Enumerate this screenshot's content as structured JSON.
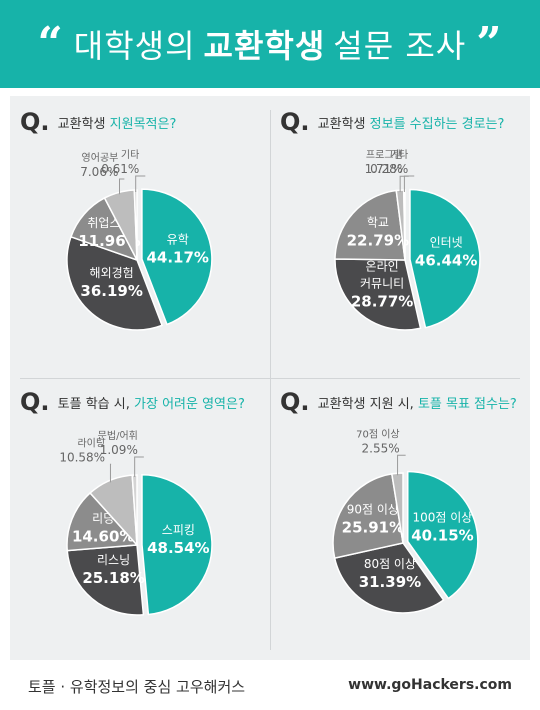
{
  "header": {
    "open_quote": "“",
    "title_pre": "대학생의",
    "title_bold": "교환학생",
    "title_post": "설문 조사",
    "close_quote": "”"
  },
  "colors": {
    "teal": "#17b3a9",
    "dark": "#4a4a4c",
    "mid": "#8c8c8c",
    "light": "#bdbdbd",
    "lighter": "#d4d4d4"
  },
  "chart_data": [
    {
      "type": "pie",
      "q_mark": "Q.",
      "title_pre": "교환학생",
      "title_accent": "지원목적은?",
      "title_post": "",
      "slices": [
        {
          "label": "유학",
          "value": 44.17,
          "value_text": "44.17%",
          "color": "#17b3a9",
          "label_position": "inside"
        },
        {
          "label": "해외경험",
          "value": 36.19,
          "value_text": "36.19%",
          "color": "#4a4a4c",
          "label_position": "inside"
        },
        {
          "label": "취업스펙",
          "value": 11.96,
          "value_text": "11.96%",
          "color": "#8c8c8c",
          "label_position": "inside"
        },
        {
          "label": "영어공부",
          "value": 7.06,
          "value_text": "7.06%",
          "color": "#bdbdbd",
          "label_position": "outside"
        },
        {
          "label": "기타",
          "value": 0.61,
          "value_text": "0.61%",
          "color": "#d4d4d4",
          "label_position": "outside"
        }
      ]
    },
    {
      "type": "pie",
      "q_mark": "Q.",
      "title_pre": "교환학생",
      "title_accent": "정보를 수집하는 경로는?",
      "title_post": "",
      "slices": [
        {
          "label": "인터넷",
          "value": 46.44,
          "value_text": "46.44%",
          "color": "#17b3a9",
          "label_position": "inside"
        },
        {
          "label": "온라인\n커뮤니티",
          "value": 28.77,
          "value_text": "28.77%",
          "color": "#4a4a4c",
          "label_position": "inside"
        },
        {
          "label": "학교",
          "value": 22.79,
          "value_text": "22.79%",
          "color": "#8c8c8c",
          "label_position": "inside"
        },
        {
          "label": "프로그램",
          "value": 1.71,
          "value_text": "1.71%",
          "color": "#bdbdbd",
          "label_position": "outside"
        },
        {
          "label": "기타",
          "value": 0.28,
          "value_text": "0.28%",
          "color": "#d4d4d4",
          "label_position": "outside"
        }
      ]
    },
    {
      "type": "pie",
      "q_mark": "Q.",
      "title_pre": "토플 학습 시,",
      "title_accent": "가장 어려운 영역은?",
      "title_post": "",
      "slices": [
        {
          "label": "스피킹",
          "value": 48.54,
          "value_text": "48.54%",
          "color": "#17b3a9",
          "label_position": "inside"
        },
        {
          "label": "리스닝",
          "value": 25.18,
          "value_text": "25.18%",
          "color": "#4a4a4c",
          "label_position": "inside"
        },
        {
          "label": "리딩",
          "value": 14.6,
          "value_text": "14.60%",
          "color": "#8c8c8c",
          "label_position": "inside"
        },
        {
          "label": "라이팅",
          "value": 10.58,
          "value_text": "10.58%",
          "color": "#bdbdbd",
          "label_position": "outside"
        },
        {
          "label": "문법/어휘",
          "value": 1.09,
          "value_text": "1.09%",
          "color": "#d4d4d4",
          "label_position": "outside"
        }
      ]
    },
    {
      "type": "pie",
      "q_mark": "Q.",
      "title_pre": "교환학생 지원 시,",
      "title_accent": "토플 목표 점수는?",
      "title_post": "",
      "slices": [
        {
          "label": "100점 이상",
          "value": 40.15,
          "value_text": "40.15%",
          "color": "#17b3a9",
          "label_position": "inside"
        },
        {
          "label": "80점 이상",
          "value": 31.39,
          "value_text": "31.39%",
          "color": "#4a4a4c",
          "label_position": "inside"
        },
        {
          "label": "90점 이상",
          "value": 25.91,
          "value_text": "25.91%",
          "color": "#8c8c8c",
          "label_position": "inside"
        },
        {
          "label": "70점 이상",
          "value": 2.55,
          "value_text": "2.55%",
          "color": "#bdbdbd",
          "label_position": "outside"
        }
      ]
    }
  ],
  "footer": {
    "left": "토플 · 유학정보의 중심 고우해커스",
    "right": "www.goHackers.com"
  }
}
